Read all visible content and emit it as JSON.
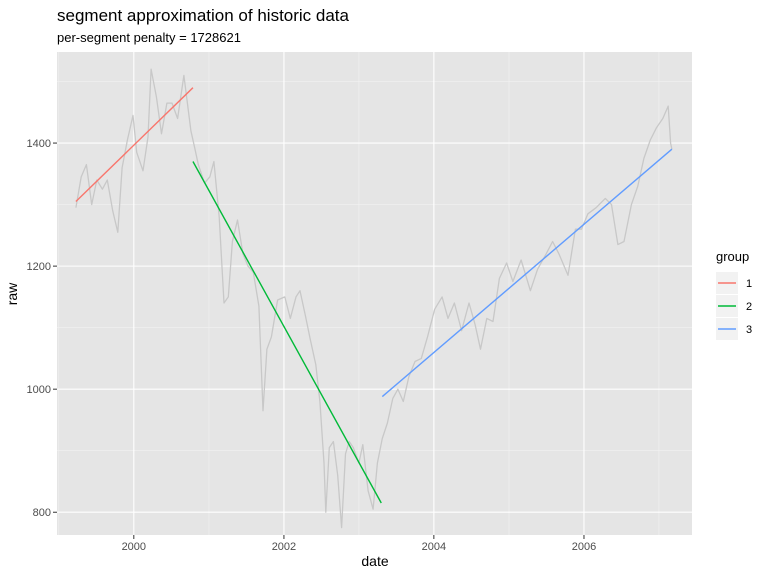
{
  "chart_data": {
    "type": "line",
    "title": "segment approximation of historic data",
    "subtitle": "per-segment penalty = 1728621",
    "xlabel": "date",
    "ylabel": "raw",
    "x_ticks": [
      "2000",
      "2002",
      "2004",
      "2006"
    ],
    "y_ticks": [
      800,
      1000,
      1200,
      1400
    ],
    "xlim": [
      "1998-12-23",
      "2007-06-11"
    ],
    "ylim": [
      763,
      1548
    ],
    "grid": true,
    "legend": {
      "title": "group",
      "position": "right"
    },
    "raw_series": {
      "color": "#c8c8c8",
      "points": [
        [
          "1999-03-25",
          1295
        ],
        [
          "1999-04-20",
          1345
        ],
        [
          "1999-05-15",
          1365
        ],
        [
          "1999-06-10",
          1300
        ],
        [
          "1999-07-05",
          1340
        ],
        [
          "1999-08-01",
          1325
        ],
        [
          "1999-08-25",
          1340
        ],
        [
          "1999-09-20",
          1290
        ],
        [
          "1999-10-15",
          1255
        ],
        [
          "1999-11-05",
          1360
        ],
        [
          "1999-12-01",
          1405
        ],
        [
          "1999-12-28",
          1445
        ],
        [
          "2000-01-15",
          1385
        ],
        [
          "2000-02-15",
          1355
        ],
        [
          "2000-03-10",
          1410
        ],
        [
          "2000-03-25",
          1520
        ],
        [
          "2000-04-20",
          1475
        ],
        [
          "2000-05-15",
          1415
        ],
        [
          "2000-06-10",
          1465
        ],
        [
          "2000-07-05",
          1465
        ],
        [
          "2000-08-01",
          1440
        ],
        [
          "2000-09-01",
          1510
        ],
        [
          "2000-10-05",
          1420
        ],
        [
          "2000-10-25",
          1390
        ],
        [
          "2000-11-10",
          1365
        ],
        [
          "2000-12-10",
          1335
        ],
        [
          "2001-01-05",
          1345
        ],
        [
          "2001-01-25",
          1370
        ],
        [
          "2001-02-20",
          1280
        ],
        [
          "2001-03-15",
          1140
        ],
        [
          "2001-04-05",
          1150
        ],
        [
          "2001-04-25",
          1240
        ],
        [
          "2001-05-20",
          1275
        ],
        [
          "2001-06-15",
          1220
        ],
        [
          "2001-07-10",
          1200
        ],
        [
          "2001-08-05",
          1190
        ],
        [
          "2001-09-01",
          1135
        ],
        [
          "2001-09-21",
          965
        ],
        [
          "2001-10-10",
          1065
        ],
        [
          "2001-11-01",
          1085
        ],
        [
          "2001-12-01",
          1145
        ],
        [
          "2002-01-05",
          1150
        ],
        [
          "2002-02-01",
          1115
        ],
        [
          "2002-03-01",
          1150
        ],
        [
          "2002-03-20",
          1160
        ],
        [
          "2002-04-15",
          1120
        ],
        [
          "2002-05-10",
          1080
        ],
        [
          "2002-06-05",
          1040
        ],
        [
          "2002-06-25",
          980
        ],
        [
          "2002-07-15",
          880
        ],
        [
          "2002-07-24",
          800
        ],
        [
          "2002-08-10",
          905
        ],
        [
          "2002-08-30",
          915
        ],
        [
          "2002-09-20",
          860
        ],
        [
          "2002-10-09",
          775
        ],
        [
          "2002-10-28",
          895
        ],
        [
          "2002-11-15",
          915
        ],
        [
          "2002-12-05",
          905
        ],
        [
          "2003-01-01",
          880
        ],
        [
          "2003-01-20",
          910
        ],
        [
          "2003-02-15",
          835
        ],
        [
          "2003-03-11",
          805
        ],
        [
          "2003-04-01",
          880
        ],
        [
          "2003-04-25",
          920
        ],
        [
          "2003-05-20",
          945
        ],
        [
          "2003-06-15",
          985
        ],
        [
          "2003-07-10",
          1000
        ],
        [
          "2003-08-05",
          980
        ],
        [
          "2003-09-01",
          1020
        ],
        [
          "2003-10-01",
          1045
        ],
        [
          "2003-11-01",
          1050
        ],
        [
          "2003-12-01",
          1085
        ],
        [
          "2004-01-05",
          1130
        ],
        [
          "2004-02-10",
          1150
        ],
        [
          "2004-03-10",
          1115
        ],
        [
          "2004-04-10",
          1140
        ],
        [
          "2004-05-15",
          1095
        ],
        [
          "2004-06-20",
          1140
        ],
        [
          "2004-07-20",
          1105
        ],
        [
          "2004-08-15",
          1065
        ],
        [
          "2004-09-15",
          1115
        ],
        [
          "2004-10-15",
          1110
        ],
        [
          "2004-11-15",
          1180
        ],
        [
          "2004-12-20",
          1205
        ],
        [
          "2005-01-20",
          1175
        ],
        [
          "2005-03-01",
          1210
        ],
        [
          "2005-04-15",
          1160
        ],
        [
          "2005-05-20",
          1195
        ],
        [
          "2005-07-01",
          1220
        ],
        [
          "2005-08-01",
          1240
        ],
        [
          "2005-09-01",
          1220
        ],
        [
          "2005-10-15",
          1185
        ],
        [
          "2005-11-20",
          1260
        ],
        [
          "2005-12-20",
          1260
        ],
        [
          "2006-01-20",
          1285
        ],
        [
          "2006-03-01",
          1295
        ],
        [
          "2006-04-15",
          1310
        ],
        [
          "2006-05-15",
          1300
        ],
        [
          "2006-06-15",
          1235
        ],
        [
          "2006-07-15",
          1240
        ],
        [
          "2006-08-20",
          1300
        ],
        [
          "2006-09-20",
          1330
        ],
        [
          "2006-10-20",
          1375
        ],
        [
          "2006-11-20",
          1405
        ],
        [
          "2006-12-20",
          1425
        ],
        [
          "2007-01-20",
          1440
        ],
        [
          "2007-02-15",
          1460
        ],
        [
          "2007-02-27",
          1400
        ],
        [
          "2007-03-05",
          1390
        ]
      ]
    },
    "series": [
      {
        "name": "1",
        "color": "#f8766d",
        "points": [
          [
            "1999-03-25",
            1305
          ],
          [
            "2000-10-15",
            1490
          ]
        ]
      },
      {
        "name": "2",
        "color": "#00ba38",
        "points": [
          [
            "2000-10-15",
            1370
          ],
          [
            "2003-04-20",
            815
          ]
        ]
      },
      {
        "name": "3",
        "color": "#619cff",
        "points": [
          [
            "2003-04-25",
            988
          ],
          [
            "2007-03-05",
            1390
          ]
        ]
      }
    ]
  }
}
